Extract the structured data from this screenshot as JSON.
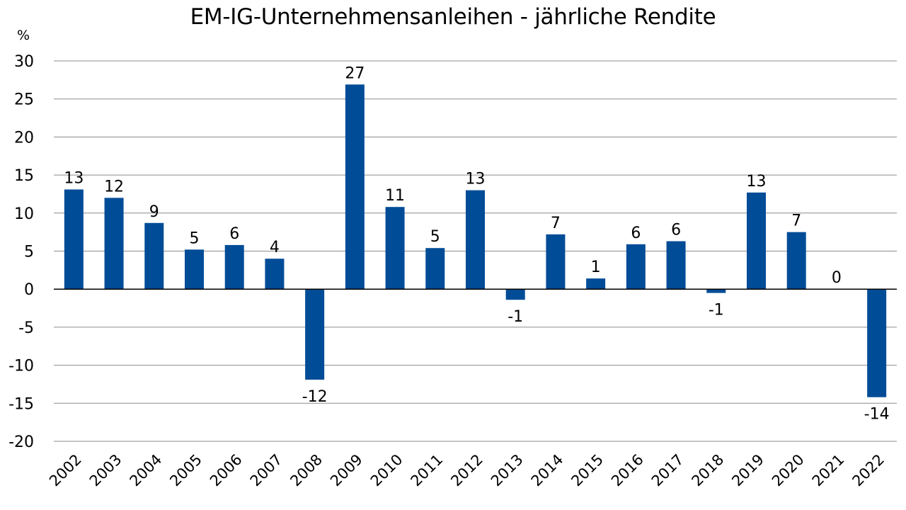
{
  "chart_data": {
    "type": "bar",
    "title": "EM-IG-Unternehmensanleihen - jährliche Rendite",
    "ylabel": "%",
    "xlabel": "",
    "ylim": [
      -20,
      30
    ],
    "yticks": [
      30,
      25,
      20,
      15,
      10,
      5,
      0,
      -5,
      -10,
      -15,
      -20
    ],
    "grid": true,
    "legend": "none",
    "bar_color": "#004C97",
    "categories": [
      "2002",
      "2003",
      "2004",
      "2005",
      "2006",
      "2007",
      "2008",
      "2009",
      "2010",
      "2011",
      "2012",
      "2013",
      "2014",
      "2015",
      "2016",
      "2017",
      "2018",
      "2019",
      "2020",
      "2021",
      "2022"
    ],
    "values": [
      13.1,
      12.0,
      8.7,
      5.2,
      5.8,
      4.0,
      -11.9,
      26.9,
      10.8,
      5.4,
      13.0,
      -1.4,
      7.2,
      1.4,
      5.9,
      6.3,
      -0.5,
      12.7,
      7.5,
      0.0,
      -14.2
    ],
    "data_labels": [
      "13",
      "12",
      "9",
      "5",
      "6",
      "4",
      "-12",
      "27",
      "11",
      "5",
      "13",
      "-1",
      "7",
      "1",
      "6",
      "6",
      "-1",
      "13",
      "7",
      "0",
      "-14"
    ]
  }
}
